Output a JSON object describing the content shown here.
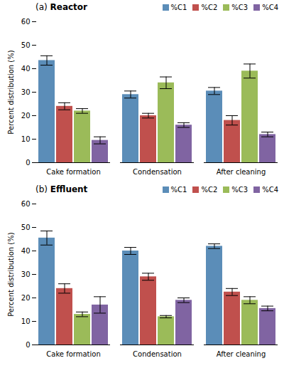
{
  "chart_data": [
    {
      "type": "bar",
      "title": "(a) Reactor",
      "categories": [
        "Cake formation",
        "Condensation",
        "After cleaning"
      ],
      "series": [
        {
          "name": "%C1",
          "color": "#5B8DB8",
          "values": [
            43.5,
            29.0,
            30.5
          ],
          "errors": [
            2.0,
            1.5,
            1.5
          ]
        },
        {
          "name": "%C2",
          "color": "#C0504D",
          "values": [
            24.0,
            20.0,
            18.0
          ],
          "errors": [
            1.5,
            1.0,
            2.0
          ]
        },
        {
          "name": "%C3",
          "color": "#9BBB59",
          "values": [
            22.0,
            34.0,
            39.0
          ],
          "errors": [
            1.0,
            2.5,
            3.0
          ]
        },
        {
          "name": "%C4",
          "color": "#8064A2",
          "values": [
            9.5,
            16.0,
            12.0
          ],
          "errors": [
            1.5,
            1.0,
            1.0
          ]
        }
      ],
      "ylabel": "Percent distribution (%)",
      "ylim": [
        0,
        60
      ],
      "yticks": [
        0,
        10,
        20,
        30,
        40,
        50,
        60
      ],
      "legend": "upper right",
      "grid": false
    },
    {
      "type": "bar",
      "title": "(b) Effluent",
      "categories": [
        "Cake formation",
        "Condensation",
        "After cleaning"
      ],
      "series": [
        {
          "name": "%C1",
          "color": "#5B8DB8",
          "values": [
            45.5,
            40.0,
            42.0
          ],
          "errors": [
            3.0,
            1.5,
            1.0
          ]
        },
        {
          "name": "%C2",
          "color": "#C0504D",
          "values": [
            24.0,
            29.0,
            22.5
          ],
          "errors": [
            2.0,
            1.5,
            1.5
          ]
        },
        {
          "name": "%C3",
          "color": "#9BBB59",
          "values": [
            13.0,
            12.0,
            19.0
          ],
          "errors": [
            1.0,
            0.5,
            1.5
          ]
        },
        {
          "name": "%C4",
          "color": "#8064A2",
          "values": [
            17.0,
            19.0,
            15.5
          ],
          "errors": [
            3.5,
            1.0,
            1.0
          ]
        }
      ],
      "ylabel": "Percent distribution (%)",
      "ylim": [
        0,
        60
      ],
      "yticks": [
        0,
        10,
        20,
        30,
        40,
        50,
        60
      ],
      "legend": "upper right",
      "grid": false
    }
  ]
}
